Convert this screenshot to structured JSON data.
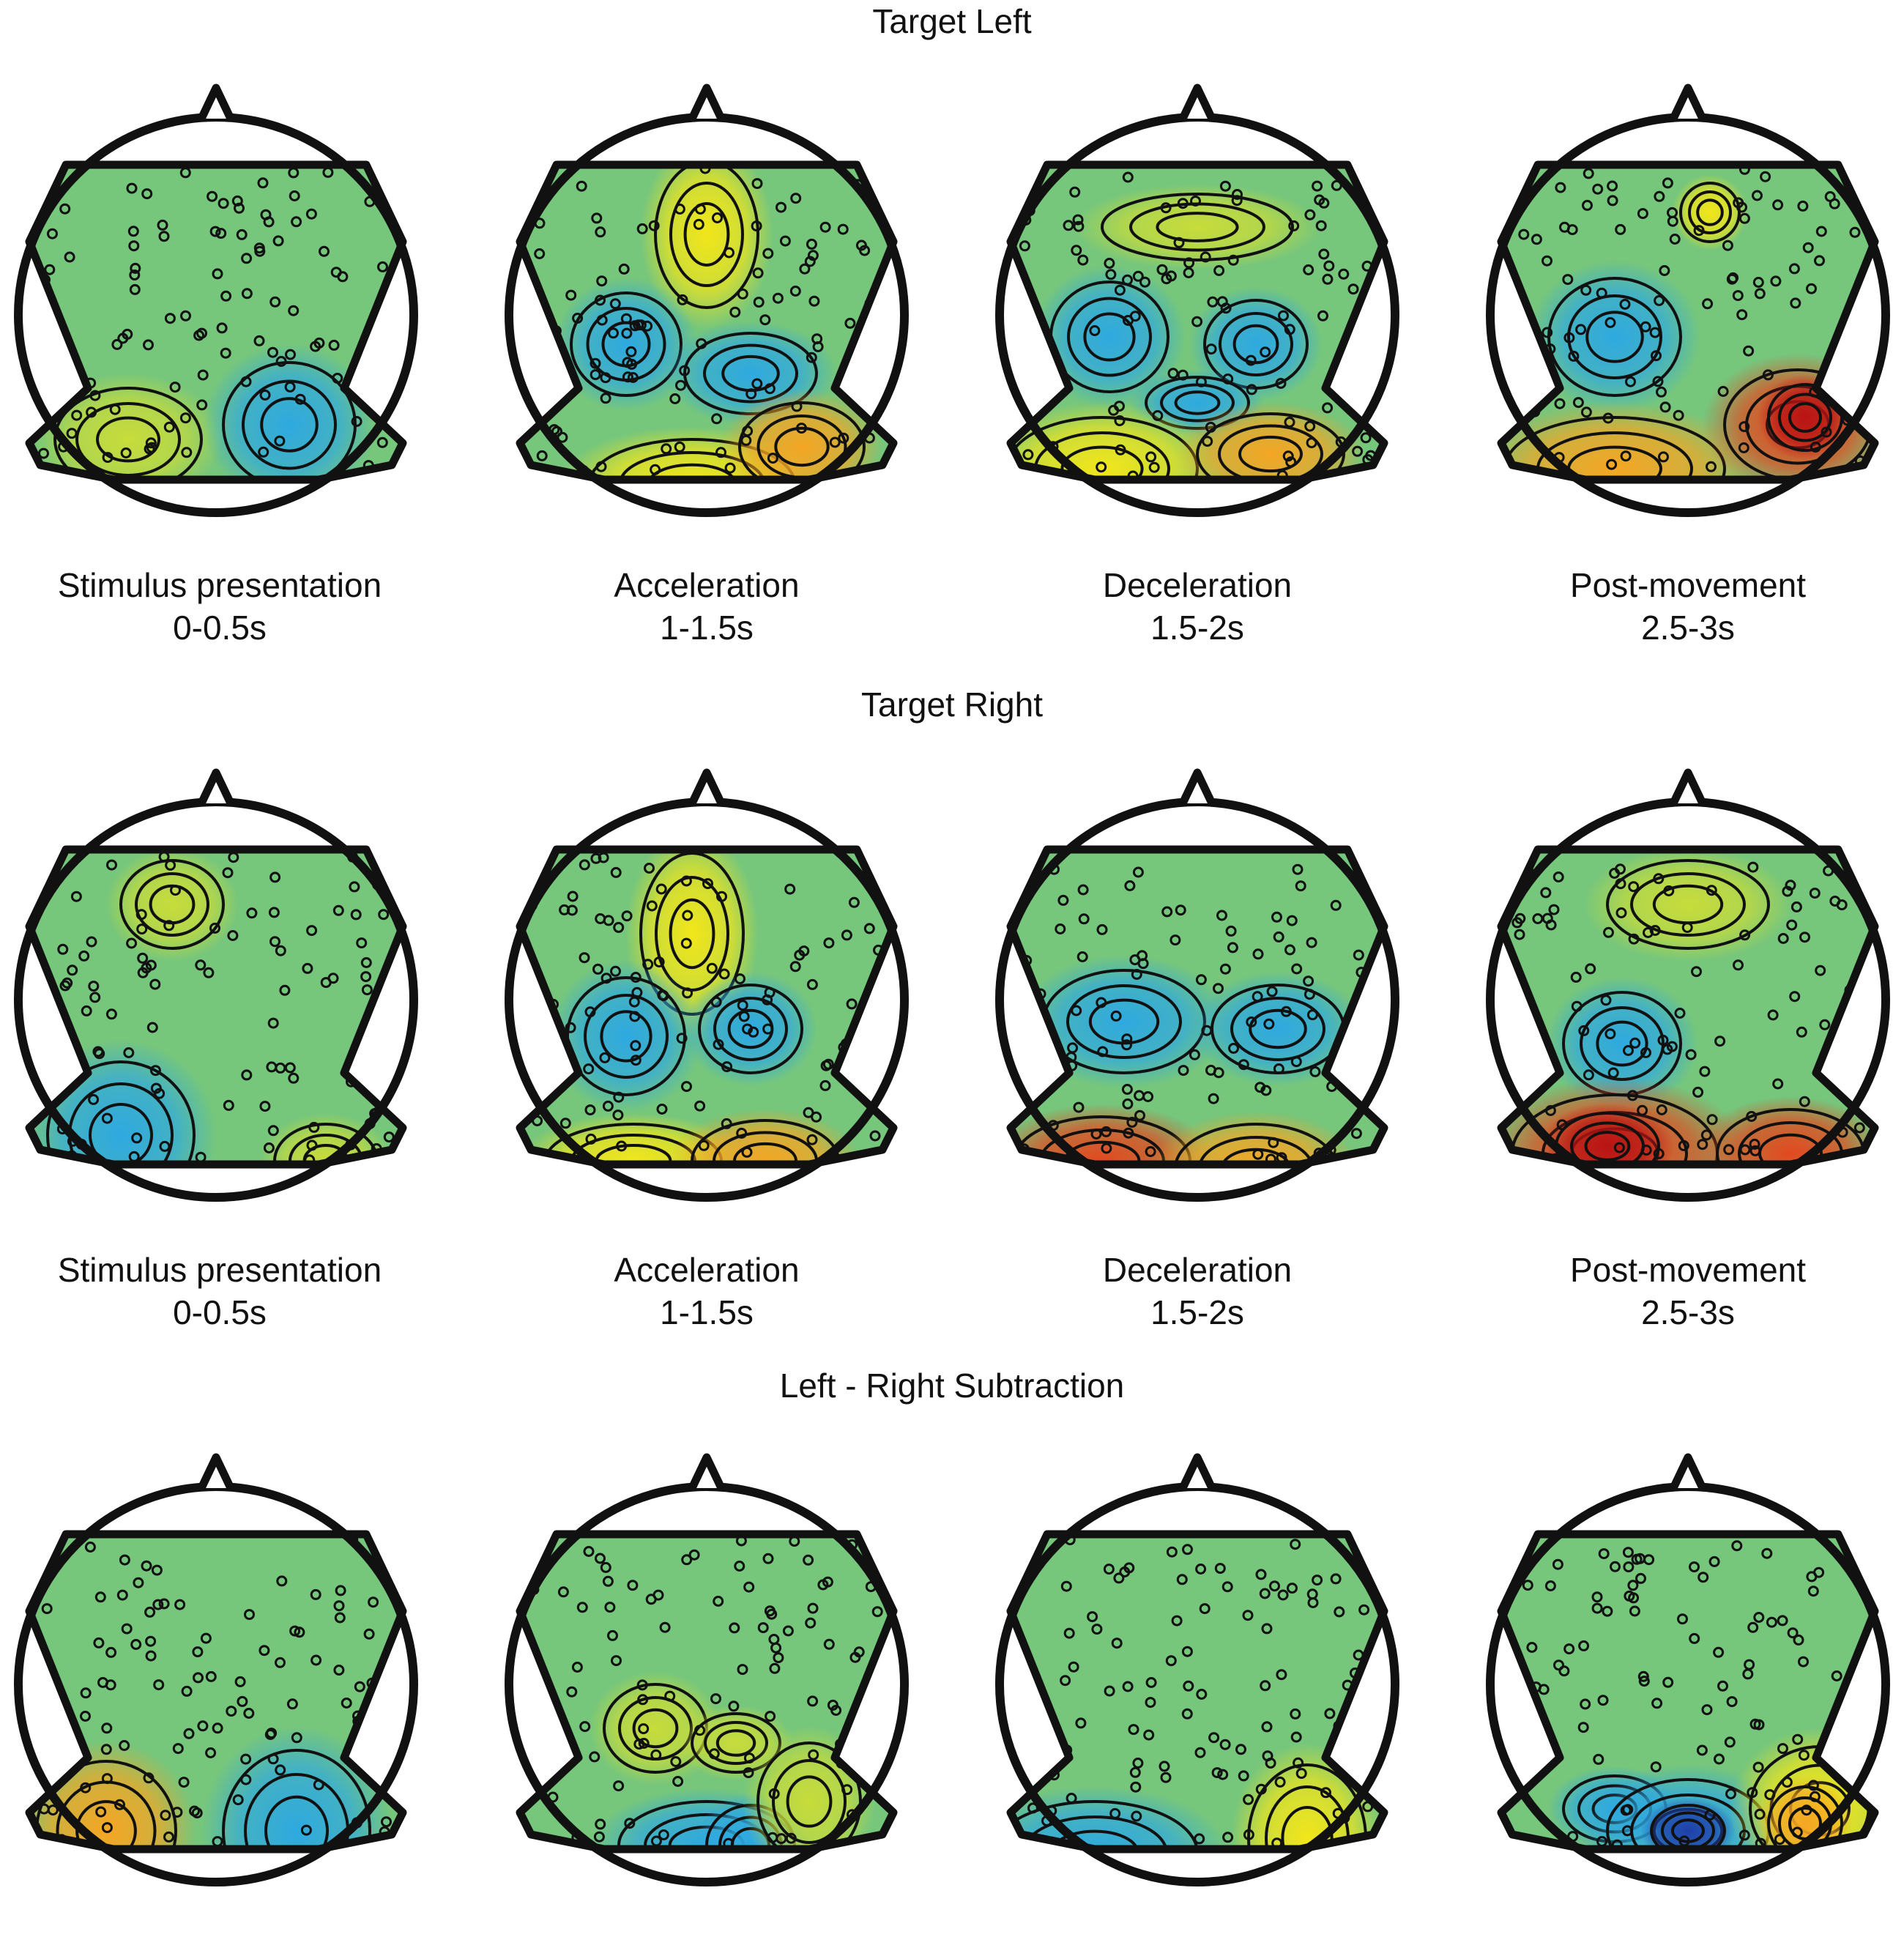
{
  "rows": [
    {
      "title": "Target Left",
      "phases": [
        {
          "name": "Stimulus presentation",
          "time": "0-0.5s"
        },
        {
          "name": "Acceleration",
          "time": "1-1.5s"
        },
        {
          "name": "Deceleration",
          "time": "1.5-2s"
        },
        {
          "name": "Post-movement",
          "time": "2.5-3s"
        }
      ]
    },
    {
      "title": "Target Right",
      "phases": [
        {
          "name": "Stimulus presentation",
          "time": "0-0.5s"
        },
        {
          "name": "Acceleration",
          "time": "1-1.5s"
        },
        {
          "name": "Deceleration",
          "time": "1.5-2s"
        },
        {
          "name": "Post-movement",
          "time": "2.5-3s"
        }
      ]
    },
    {
      "title": "Left - Right Subtraction"
    }
  ],
  "colormap": [
    "#1f3fa8",
    "#2ea9e0",
    "#6cc9a6",
    "#7dc068",
    "#c8dc3a",
    "#f2e61a",
    "#f5a623",
    "#e2491f",
    "#b81414"
  ],
  "background_color": "#7fc35a"
}
